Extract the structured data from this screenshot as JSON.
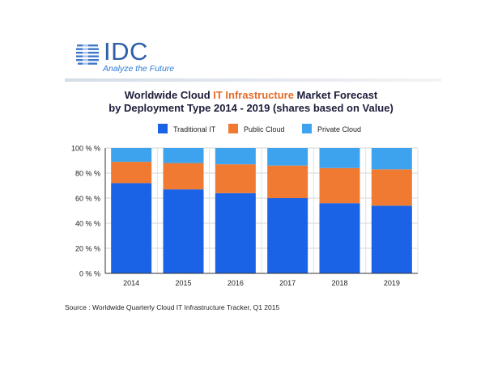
{
  "logo": {
    "text": "IDC",
    "tagline": "Analyze the Future",
    "icon": "globe-icon",
    "color": "#2f5fa8"
  },
  "title": {
    "line1_pre": "Worldwide Cloud ",
    "line1_highlight": "IT Infrastructure",
    "line1_post": " Market Forecast",
    "line2": "by Deployment Type  2014 - 2019 (shares based on Value)"
  },
  "source": "Source : Worldwide Quarterly Cloud IT Infrastructure Tracker, Q1 2015",
  "chart_data": {
    "type": "bar",
    "stacked": true,
    "categories": [
      "2014",
      "2015",
      "2016",
      "2017",
      "2018",
      "2019"
    ],
    "series": [
      {
        "name": "Traditional IT",
        "color": "#1a62e6",
        "values": [
          72,
          67,
          64,
          60,
          56,
          54
        ]
      },
      {
        "name": "Public Cloud",
        "color": "#f07a32",
        "values": [
          17,
          21,
          23,
          26,
          28,
          29
        ]
      },
      {
        "name": "Private Cloud",
        "color": "#3ea3ef",
        "values": [
          11,
          12,
          13,
          14,
          16,
          17
        ]
      }
    ],
    "yticks": [
      "0 % %",
      "20 % %",
      "40 % %",
      "60 % %",
      "80 % %",
      "100 % %"
    ],
    "ylim": [
      0,
      100
    ],
    "grid": true,
    "legend_position": "top"
  }
}
